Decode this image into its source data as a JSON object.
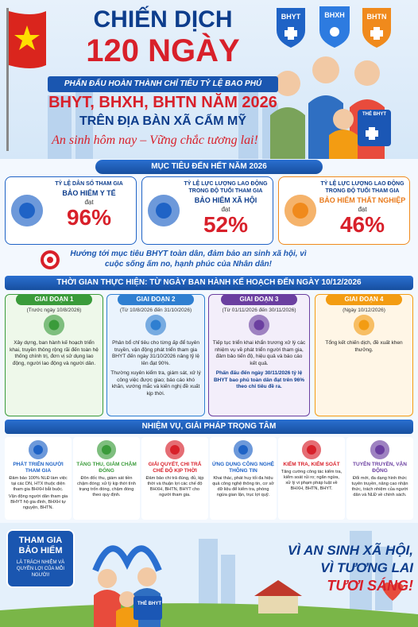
{
  "header": {
    "title_line1": "CHIẾN DỊCH",
    "title_line2": "120 NGÀY",
    "badges": [
      "BHYT",
      "BHXH",
      "BHTN"
    ],
    "banner": "PHẤN ĐẤU HOÀN THÀNH CHỈ TIÊU TỶ LỆ BAO PHỦ",
    "subtitle": "BHYT, BHXH, BHTN NĂM 2026",
    "location": "TRÊN ĐỊA BÀN XÃ CẨM MỸ",
    "slogan": "An sinh hôm nay – Vững chắc tương lai!",
    "card_label": "THẺ BHYT"
  },
  "targets": {
    "heading": "MỤC TIÊU ĐẾN HẾT NĂM 2026",
    "items": [
      {
        "label": "TỶ LỆ DÂN SỐ THAM GIA",
        "program": "BẢO HIỂM Y TẾ",
        "reach": "đạt",
        "value": "96%"
      },
      {
        "label": "TỶ LỆ LỰC LƯỢNG LAO ĐỘNG TRONG ĐỘ TUỔI THAM GIA",
        "program": "BẢO HIỂM XÃ HỘI",
        "reach": "đạt",
        "value": "52%"
      },
      {
        "label": "TỶ LỆ LỰC LƯỢNG LAO ĐỘNG TRONG ĐỘ TUỔI THAM GIA",
        "program": "BẢO HIỂM THẤT NGHIỆP",
        "reach": "đạt",
        "value": "46%"
      }
    ],
    "goal": "Hướng tới mục tiêu BHYT toàn dân, đảm bảo an sinh xã hội, vì cuộc sống ấm no, hạnh phúc của Nhân dân!"
  },
  "timeline": {
    "heading": "THỜI GIAN THỰC HIỆN: TỪ NGÀY BAN HÀNH KẾ HOẠCH ĐẾN NGÀY 10/12/2026",
    "phases": [
      {
        "name": "GIAI ĐOẠN 1",
        "period": "(Trước ngày 10/8/2026)",
        "texts": [
          "Xây dựng, ban hành kế hoạch triển khai, truyền thông rộng rãi đến toàn hệ thống chính trị, đơn vị sử dụng lao động, người lao động và người dân."
        ]
      },
      {
        "name": "GIAI ĐOẠN 2",
        "period": "(Từ 10/8/2026 đến 31/10/2026)",
        "texts": [
          "Phân bổ chỉ tiêu cho từng ấp để tuyên truyền, vận động phát triển tham gia BHYT đến ngày 31/10/2026 nâng tỷ lệ lên đạt 90%.",
          "Thường xuyên kiểm tra, giám sát, xử lý công việc được giao; báo cáo khó khăn, vướng mắc và kiến nghị đề xuất kịp thời."
        ]
      },
      {
        "name": "GIAI ĐOẠN 3",
        "period": "(Từ 01/11/2026 đến 30/11/2026)",
        "texts": [
          "Tiếp tục triển khai khẩn trương xử lý các nhiệm vụ về phát triển người tham gia, đảm bảo tiến độ, hiệu quả và báo cáo kết quả.",
          "Phấn đấu đến ngày 30/11/2026 tỷ lệ BHYT bao phủ toàn dân đạt trên 96% theo chỉ tiêu đề ra."
        ]
      },
      {
        "name": "GIAI ĐOẠN 4",
        "period": "(Ngày 10/12/2026)",
        "texts": [
          "Tổng kết chiến dịch, đề xuất khen thưởng."
        ]
      }
    ]
  },
  "tasks": {
    "heading": "NHIỆM VỤ, GIẢI PHÁP TRỌNG TÂM",
    "items": [
      {
        "title": "PHÁT TRIỂN NGƯỜI THAM GIA",
        "texts": [
          "Đảm bảo 100% NLĐ làm việc tại các DN, HTX thuộc diện tham gia BHXH bắt buộc.",
          "Vận động người dân tham gia BHYT hộ gia đình, BHXH tự nguyện, BHTN."
        ]
      },
      {
        "title": "TĂNG THU, GIẢM CHẬM ĐÓNG",
        "texts": [
          "Đôn đốc thu, giám sát tiền chậm đóng; xử lý kịp thời tình trạng trốn đóng, chậm đóng theo quy định."
        ]
      },
      {
        "title": "GIẢI QUYẾT, CHI TRẢ CHẾ ĐỘ KỊP THỜI",
        "texts": [
          "Đảm bảo chi trả đúng, đủ, kịp thời và thuận lợi các chế độ BHXH, BHTN, BHYT cho người tham gia."
        ]
      },
      {
        "title": "ỨNG DỤNG CÔNG NGHỆ THÔNG TIN",
        "texts": [
          "Khai thác, phát huy tối đa hiệu quả công nghệ thông tin, cơ sở dữ liệu để kiểm tra, phòng ngừa gian lận, trục lợi quỹ."
        ]
      },
      {
        "title": "KIỂM TRA, KIỂM SOÁT",
        "texts": [
          "Tăng cường công tác kiểm tra, kiểm soát rủi ro; ngăn ngừa, xử lý vi phạm pháp luật về BHXH, BHTN, BHYT."
        ]
      },
      {
        "title": "TUYÊN TRUYỀN, VẬN ĐỘNG",
        "texts": [
          "Đổi mới, đa dạng hình thức tuyên truyền, nâng cao nhận thức, trách nhiệm của người dân và NLĐ về chính sách."
        ]
      }
    ]
  },
  "footer": {
    "badge_title": "THAM GIA BẢO HIỂM",
    "badge_text": "LÀ TRÁCH NHIỆM VÀ QUYỀN LỢI CỦA MỖI NGƯỜI!",
    "slogan_lines": [
      "VÌ AN SINH XÃ HỘI,",
      "VÌ TƯƠNG LAI",
      "TƯƠI SÁNG!"
    ],
    "card_label": "THẺ BHYT"
  }
}
